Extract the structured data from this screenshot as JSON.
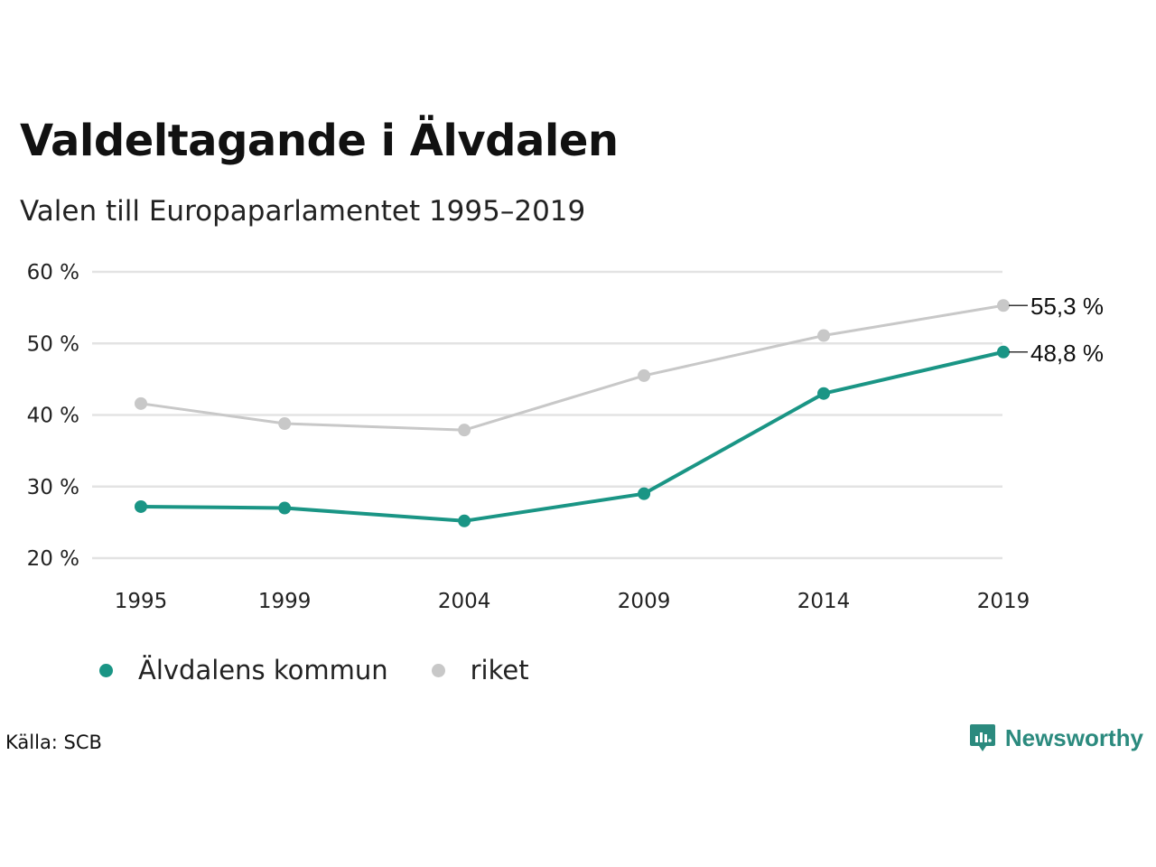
{
  "title": "Valdeltagande i Älvdalen",
  "subtitle": "Valen till Europaparlamentet 1995–2019",
  "source": "Källa: SCB",
  "brand": "Newsworthy",
  "colors": {
    "kommun": "#1a9585",
    "riket": "#c8c8c8",
    "grid": "#e3e3e3",
    "brand": "#2b8a7e"
  },
  "chart_data": {
    "type": "line",
    "x": [
      "1995",
      "1999",
      "2004",
      "2009",
      "2014",
      "2019"
    ],
    "ylim": [
      20,
      60
    ],
    "yticks": [
      20,
      30,
      40,
      50,
      60
    ],
    "ytick_labels": [
      "20 %",
      "30 %",
      "40 %",
      "50 %",
      "60 %"
    ],
    "grid": true,
    "legend_position": "bottom-left",
    "series": [
      {
        "name": "Älvdalens kommun",
        "key": "kommun",
        "values": [
          27.2,
          27.0,
          25.2,
          29.0,
          43.0,
          48.8
        ],
        "end_label": "48,8 %"
      },
      {
        "name": "riket",
        "key": "riket",
        "values": [
          41.6,
          38.8,
          37.9,
          45.5,
          51.1,
          55.3
        ],
        "end_label": "55,3 %"
      }
    ]
  }
}
